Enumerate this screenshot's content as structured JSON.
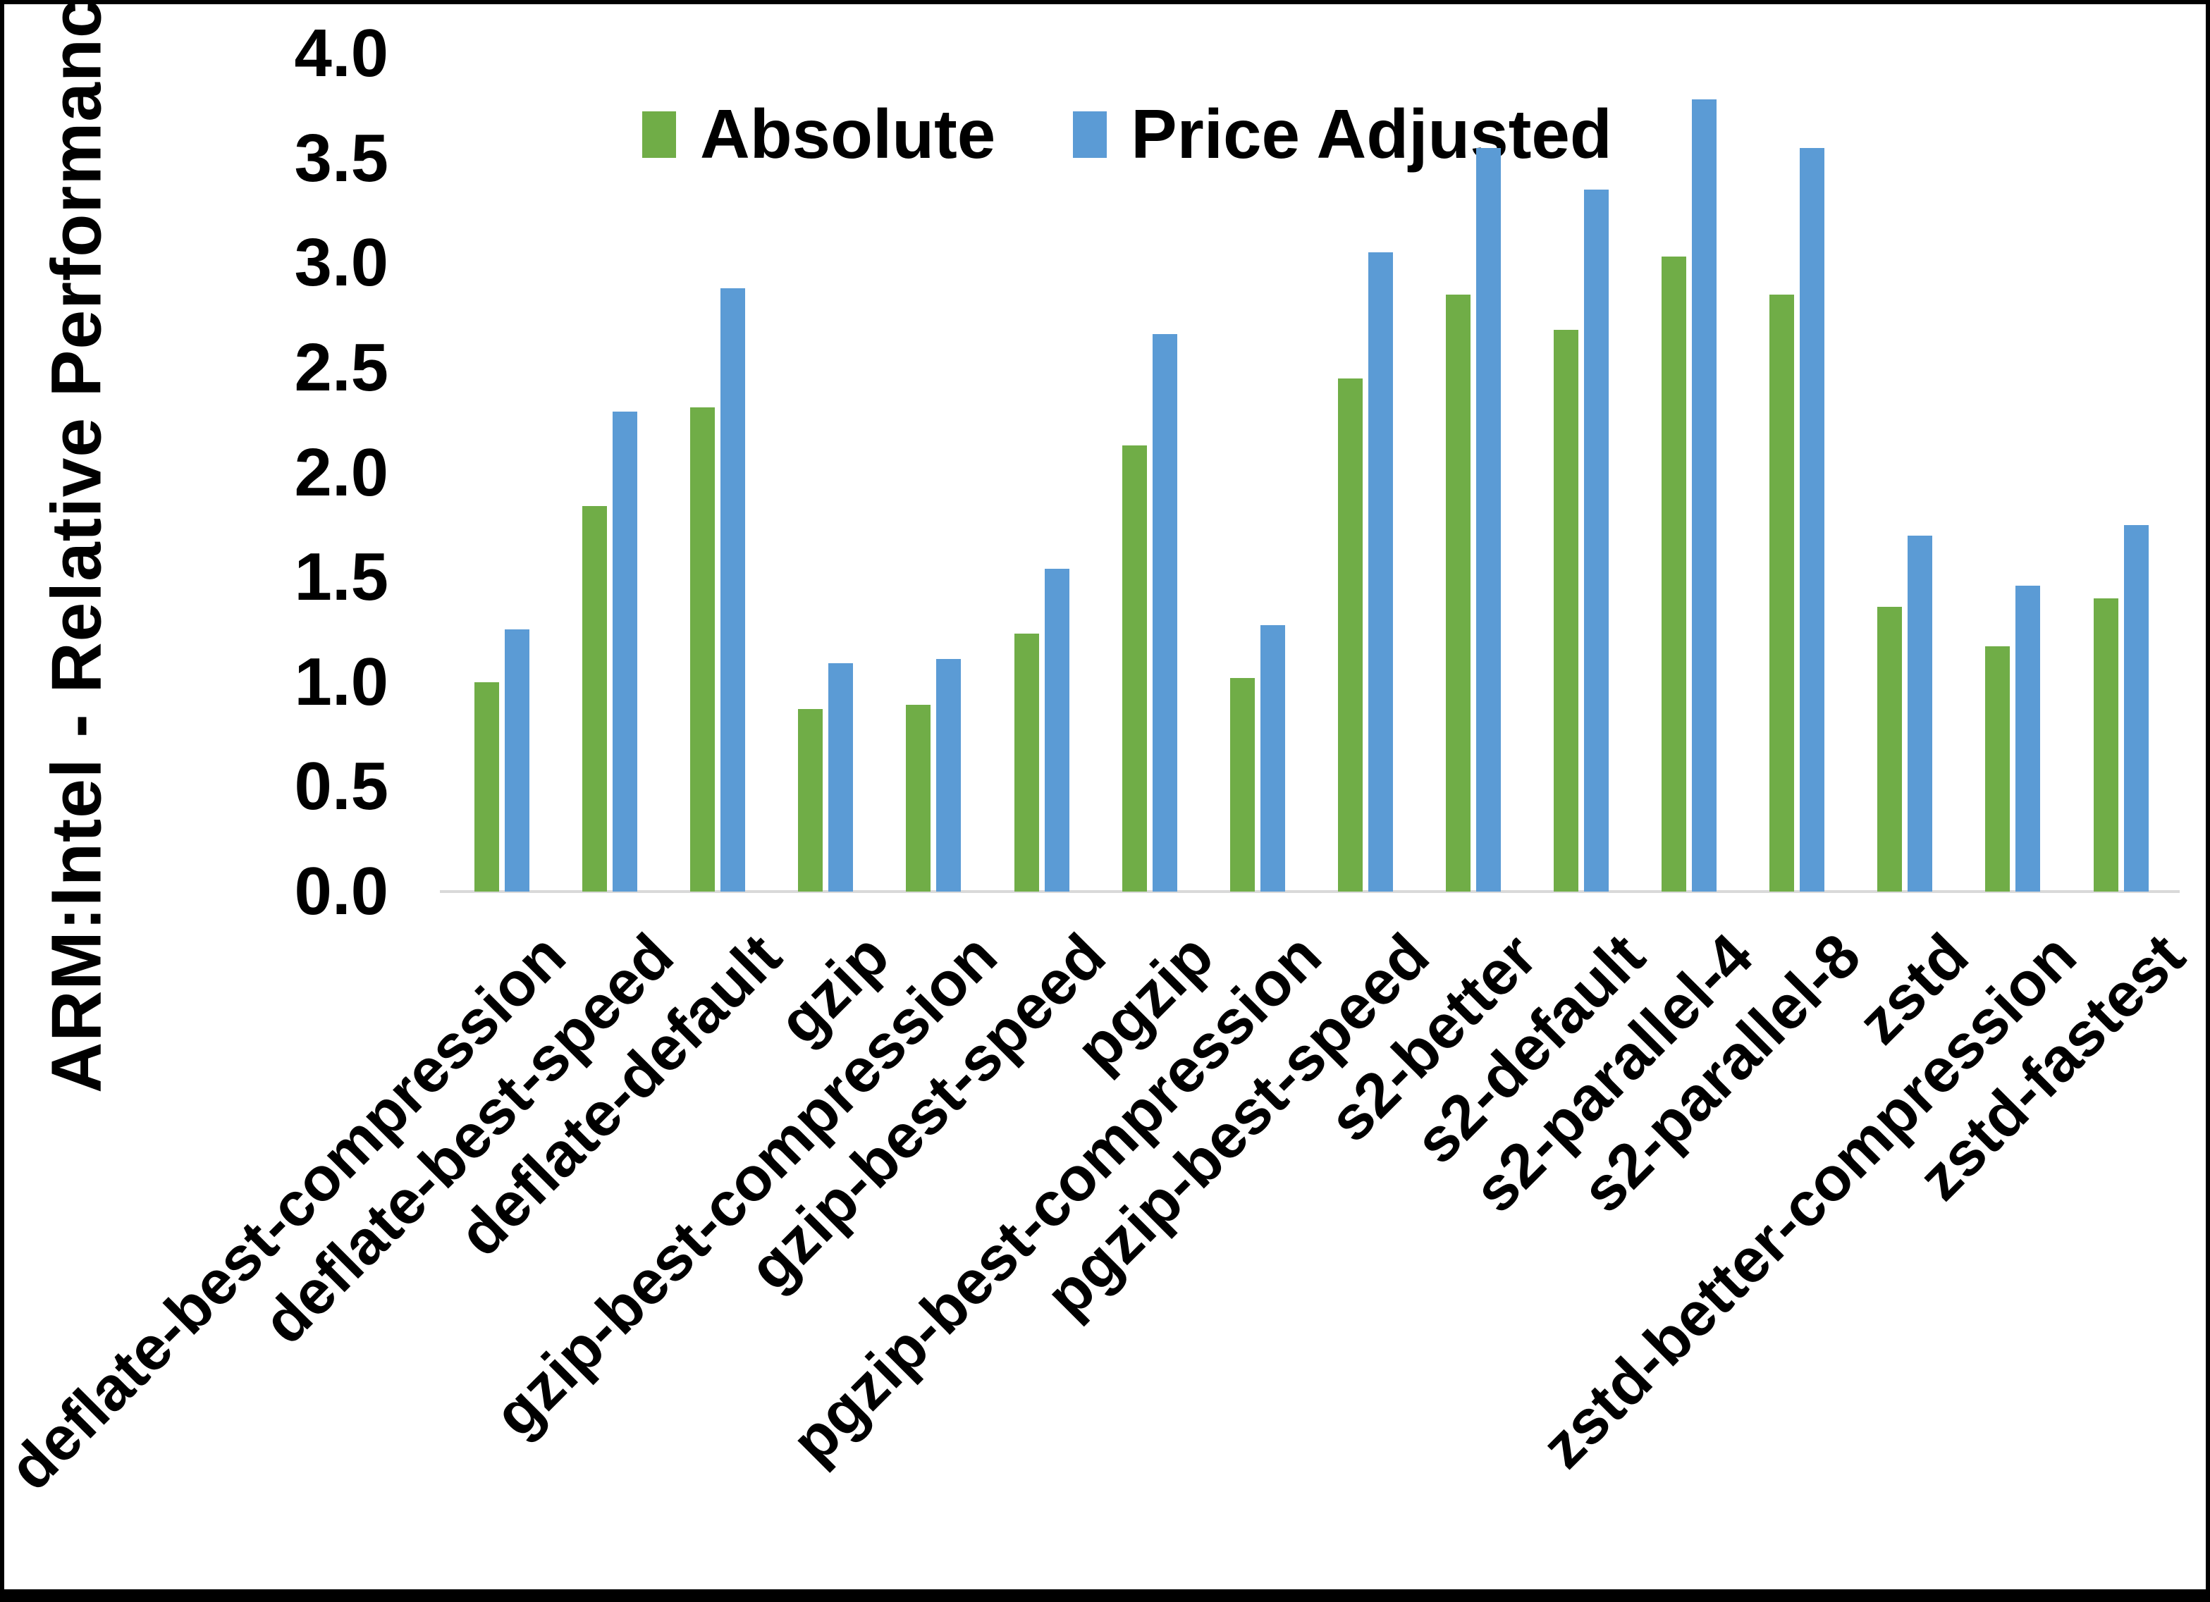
{
  "chart_data": {
    "type": "bar",
    "title": "",
    "xlabel": "",
    "ylabel": "ARM:Intel - Relative Performance",
    "ylim": [
      0.0,
      4.0
    ],
    "ytick_step": 0.5,
    "ytick_labels": [
      "4.0",
      "3.5",
      "3.0",
      "2.5",
      "2.0",
      "1.5",
      "1.0",
      "0.5",
      "0.0"
    ],
    "grid": false,
    "legend_position": "top-center",
    "categories": [
      "deflate-best-compression",
      "deflate-best-speed",
      "deflate-default",
      "gzip",
      "gzip-best-compression",
      "gzip-best-speed",
      "pgzip",
      "pgzip-best-compression",
      "pgzip-best-speed",
      "s2-better",
      "s2-default",
      "s2-parallel-4",
      "s2-parallel-8",
      "zstd",
      "zstd-better-compression",
      "zstd-fastest"
    ],
    "series": [
      {
        "name": "Absolute",
        "color": "#70AD47",
        "values": [
          1.0,
          1.84,
          2.31,
          0.87,
          0.89,
          1.23,
          2.13,
          1.02,
          2.45,
          2.85,
          2.68,
          3.03,
          2.85,
          1.36,
          1.17,
          1.4
        ]
      },
      {
        "name": "Price Adjusted",
        "color": "#5B9BD5",
        "values": [
          1.25,
          2.29,
          2.88,
          1.09,
          1.11,
          1.54,
          2.66,
          1.27,
          3.05,
          3.55,
          3.35,
          3.78,
          3.55,
          1.7,
          1.46,
          1.75
        ]
      }
    ]
  },
  "colors": {
    "background": "#FFFFFF",
    "border": "#000000",
    "axis_line": "#D9D9D9",
    "text": "#000000"
  }
}
